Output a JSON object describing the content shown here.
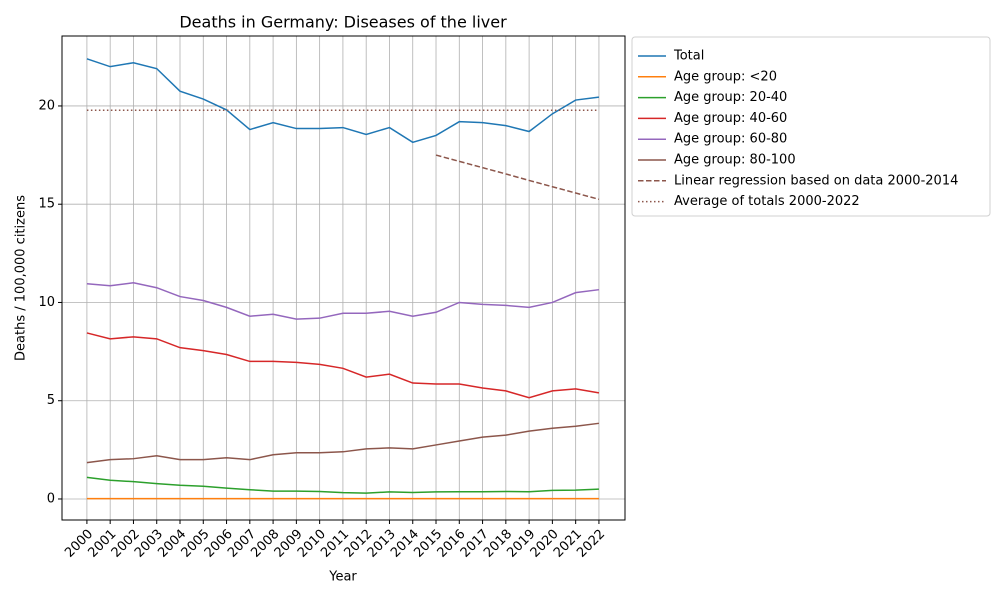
{
  "chart_data": {
    "type": "line",
    "title": "Deaths in Germany: Diseases of the liver",
    "x_label": "Year",
    "y_label": "Deaths / 100,000 citizens",
    "x": [
      2000,
      2001,
      2002,
      2003,
      2004,
      2005,
      2006,
      2007,
      2008,
      2009,
      2010,
      2011,
      2012,
      2013,
      2014,
      2015,
      2016,
      2017,
      2018,
      2019,
      2020,
      2021,
      2022
    ],
    "xlim": [
      1998.93,
      2023.12
    ],
    "xticks": [
      2000,
      2001,
      2002,
      2003,
      2004,
      2005,
      2006,
      2007,
      2008,
      2009,
      2010,
      2011,
      2012,
      2013,
      2014,
      2015,
      2016,
      2017,
      2018,
      2019,
      2020,
      2021,
      2022
    ],
    "ylim": [
      -1.07,
      23.56
    ],
    "yticks": [
      0,
      5,
      10,
      15,
      20
    ],
    "grid": true,
    "legend_position": "outside-upper-right",
    "series": [
      {
        "name": "Total",
        "color": "#1f77b4",
        "linestyle": "solid",
        "values": [
          22.4,
          22.0,
          22.2,
          21.9,
          20.75,
          20.35,
          19.8,
          18.8,
          19.15,
          18.85,
          18.85,
          18.9,
          18.55,
          18.9,
          18.15,
          18.5,
          19.2,
          19.15,
          19.0,
          18.7,
          19.6,
          20.3,
          20.45
        ]
      },
      {
        "name": "Age group: <20",
        "color": "#ff7f0e",
        "linestyle": "solid",
        "values": [
          0.02,
          0.02,
          0.02,
          0.02,
          0.02,
          0.02,
          0.02,
          0.02,
          0.02,
          0.02,
          0.02,
          0.02,
          0.02,
          0.02,
          0.02,
          0.02,
          0.02,
          0.02,
          0.02,
          0.02,
          0.02,
          0.02,
          0.02
        ]
      },
      {
        "name": "Age group: 20-40",
        "color": "#2ca02c",
        "linestyle": "solid",
        "values": [
          1.1,
          0.95,
          0.88,
          0.78,
          0.7,
          0.65,
          0.55,
          0.47,
          0.4,
          0.4,
          0.38,
          0.32,
          0.3,
          0.36,
          0.33,
          0.36,
          0.37,
          0.37,
          0.38,
          0.37,
          0.44,
          0.45,
          0.5
        ]
      },
      {
        "name": "Age group: 40-60",
        "color": "#d62728",
        "linestyle": "solid",
        "values": [
          8.45,
          8.15,
          8.25,
          8.15,
          7.7,
          7.55,
          7.35,
          7.0,
          7.0,
          6.95,
          6.85,
          6.65,
          6.2,
          6.35,
          5.9,
          5.85,
          5.85,
          5.65,
          5.5,
          5.15,
          5.5,
          5.6,
          5.4
        ]
      },
      {
        "name": "Age group: 60-80",
        "color": "#9467bd",
        "linestyle": "solid",
        "values": [
          10.95,
          10.85,
          11.0,
          10.75,
          10.3,
          10.1,
          9.75,
          9.3,
          9.4,
          9.15,
          9.2,
          9.45,
          9.45,
          9.55,
          9.3,
          9.5,
          10.0,
          9.9,
          9.85,
          9.75,
          10.0,
          10.5,
          10.65
        ]
      },
      {
        "name": "Age group: 80-100",
        "color": "#8c564b",
        "linestyle": "solid",
        "values": [
          1.85,
          2.0,
          2.05,
          2.2,
          2.0,
          2.0,
          2.1,
          2.0,
          2.25,
          2.35,
          2.35,
          2.4,
          2.55,
          2.6,
          2.55,
          2.75,
          2.95,
          3.15,
          3.25,
          3.45,
          3.6,
          3.7,
          3.85
        ]
      },
      {
        "name": "Linear regression based on data 2000-2014",
        "color": "#8c564b",
        "linestyle": "dashed",
        "values": [
          null,
          null,
          null,
          null,
          null,
          null,
          null,
          null,
          null,
          null,
          null,
          null,
          null,
          null,
          null,
          17.5,
          17.18,
          16.86,
          16.54,
          16.21,
          15.89,
          15.57,
          15.25
        ]
      },
      {
        "name": "Average of totals 2000-2022",
        "color": "#8c564b",
        "linestyle": "dotted",
        "values": [
          19.78,
          19.78,
          19.78,
          19.78,
          19.78,
          19.78,
          19.78,
          19.78,
          19.78,
          19.78,
          19.78,
          19.78,
          19.78,
          19.78,
          19.78,
          19.78,
          19.78,
          19.78,
          19.78,
          19.78,
          19.78,
          19.78,
          19.78
        ]
      }
    ]
  }
}
